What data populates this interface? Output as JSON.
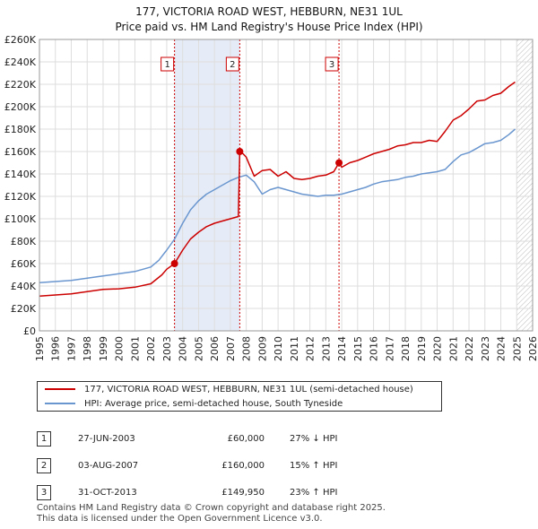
{
  "title_line1": "177, VICTORIA ROAD WEST, HEBBURN, NE31 1UL",
  "title_line2": "Price paid vs. HM Land Registry's House Price Index (HPI)",
  "colors": {
    "property": "#cc0000",
    "hpi": "#6a96cf",
    "shade": "#e6ecf7",
    "grid": "#dddddd"
  },
  "chart_data": {
    "type": "line",
    "xlim": [
      1995,
      2026
    ],
    "ylim": [
      0,
      260000
    ],
    "x_ticks": [
      "1995",
      "1996",
      "1997",
      "1998",
      "1999",
      "2000",
      "2001",
      "2002",
      "2003",
      "2004",
      "2005",
      "2006",
      "2007",
      "2008",
      "2009",
      "2010",
      "2011",
      "2012",
      "2013",
      "2014",
      "2015",
      "2016",
      "2017",
      "2018",
      "2019",
      "2020",
      "2021",
      "2022",
      "2023",
      "2024",
      "2025",
      "2026"
    ],
    "y_ticks": [
      {
        "value": 0,
        "label": "£0"
      },
      {
        "value": 20000,
        "label": "£20K"
      },
      {
        "value": 40000,
        "label": "£40K"
      },
      {
        "value": 60000,
        "label": "£60K"
      },
      {
        "value": 80000,
        "label": "£80K"
      },
      {
        "value": 100000,
        "label": "£100K"
      },
      {
        "value": 120000,
        "label": "£120K"
      },
      {
        "value": 140000,
        "label": "£140K"
      },
      {
        "value": 160000,
        "label": "£160K"
      },
      {
        "value": 180000,
        "label": "£180K"
      },
      {
        "value": 200000,
        "label": "£200K"
      },
      {
        "value": 220000,
        "label": "£220K"
      },
      {
        "value": 240000,
        "label": "£240K"
      },
      {
        "value": 260000,
        "label": "£260K"
      }
    ],
    "series": [
      {
        "name": "177, VICTORIA ROAD WEST, HEBBURN, NE31 1UL (semi-detached house)",
        "color": "#cc0000",
        "x": [
          1995.0,
          1996.0,
          1997.0,
          1998.0,
          1999.0,
          2000.0,
          2001.0,
          2002.0,
          2002.7,
          2003.0,
          2003.49,
          2004.0,
          2004.5,
          2005.0,
          2005.5,
          2006.0,
          2006.5,
          2007.0,
          2007.5,
          2007.59,
          2007.8,
          2008.0,
          2008.5,
          2009.0,
          2009.5,
          2010.0,
          2010.5,
          2011.0,
          2011.5,
          2012.0,
          2012.5,
          2013.0,
          2013.5,
          2013.83,
          2014.0,
          2014.5,
          2015.0,
          2015.5,
          2016.0,
          2016.5,
          2017.0,
          2017.5,
          2018.0,
          2018.5,
          2019.0,
          2019.5,
          2020.0,
          2020.5,
          2021.0,
          2021.5,
          2022.0,
          2022.5,
          2023.0,
          2023.5,
          2024.0,
          2024.5,
          2024.9
        ],
        "y": [
          31000,
          32000,
          33000,
          35000,
          37000,
          37500,
          39000,
          42000,
          50000,
          55000,
          60000,
          72000,
          82000,
          88000,
          93000,
          96000,
          98000,
          100000,
          102000,
          160000,
          158000,
          155000,
          138000,
          143000,
          144000,
          138000,
          142000,
          136000,
          135000,
          136000,
          138000,
          139000,
          142000,
          149950,
          146000,
          150000,
          152000,
          155000,
          158000,
          160000,
          162000,
          165000,
          166000,
          168000,
          168000,
          170000,
          169000,
          178000,
          188000,
          192000,
          198000,
          205000,
          206000,
          210000,
          212000,
          218000,
          222000
        ]
      },
      {
        "name": "HPI: Average price, semi-detached house, South Tyneside",
        "color": "#6a96cf",
        "x": [
          1995.0,
          1996.0,
          1997.0,
          1998.0,
          1999.0,
          2000.0,
          2001.0,
          2002.0,
          2002.5,
          2003.0,
          2003.5,
          2004.0,
          2004.5,
          2005.0,
          2005.5,
          2006.0,
          2006.5,
          2007.0,
          2007.5,
          2008.0,
          2008.5,
          2009.0,
          2009.5,
          2010.0,
          2010.5,
          2011.0,
          2011.5,
          2012.0,
          2012.5,
          2013.0,
          2013.5,
          2014.0,
          2014.5,
          2015.0,
          2015.5,
          2016.0,
          2016.5,
          2017.0,
          2017.5,
          2018.0,
          2018.5,
          2019.0,
          2019.5,
          2020.0,
          2020.5,
          2021.0,
          2021.5,
          2022.0,
          2022.5,
          2023.0,
          2023.5,
          2024.0,
          2024.5,
          2024.9
        ],
        "y": [
          43000,
          44000,
          45000,
          47000,
          49000,
          51000,
          53000,
          57000,
          63000,
          72000,
          82000,
          96000,
          108000,
          116000,
          122000,
          126000,
          130000,
          134000,
          137000,
          139000,
          133000,
          122000,
          126000,
          128000,
          126000,
          124000,
          122000,
          121000,
          120000,
          121000,
          121000,
          122000,
          124000,
          126000,
          128000,
          131000,
          133000,
          134000,
          135000,
          137000,
          138000,
          140000,
          141000,
          142000,
          144000,
          151000,
          157000,
          159000,
          163000,
          167000,
          168000,
          170000,
          175000,
          180000
        ]
      }
    ],
    "sales": [
      {
        "label": "1",
        "x": 2003.49,
        "y": 60000
      },
      {
        "label": "2",
        "x": 2007.59,
        "y": 160000
      },
      {
        "label": "3",
        "x": 2013.83,
        "y": 149950
      }
    ],
    "shaded_spans": [
      [
        2003.49,
        2007.59
      ]
    ],
    "future_start": 2025.0
  },
  "legend": {
    "property_label": "177, VICTORIA ROAD WEST, HEBBURN, NE31 1UL (semi-detached house)",
    "hpi_label": "HPI: Average price, semi-detached house, South Tyneside"
  },
  "sales_table": [
    {
      "num": "1",
      "date": "27-JUN-2003",
      "price": "£60,000",
      "hpi": "27% ↓ HPI"
    },
    {
      "num": "2",
      "date": "03-AUG-2007",
      "price": "£160,000",
      "hpi": "15% ↑ HPI"
    },
    {
      "num": "3",
      "date": "31-OCT-2013",
      "price": "£149,950",
      "hpi": "23% ↑ HPI"
    }
  ],
  "footer_line1": "Contains HM Land Registry data © Crown copyright and database right 2025.",
  "footer_line2": "This data is licensed under the Open Government Licence v3.0."
}
